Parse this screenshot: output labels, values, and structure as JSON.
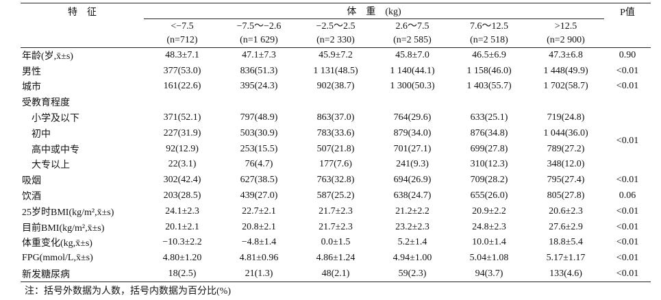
{
  "table": {
    "header": {
      "feature": "特　征",
      "weight": "体　重　(kg)",
      "columns": [
        {
          "range": "<−7.5",
          "n": "(n=712)"
        },
        {
          "range": "−7.5～−2.6",
          "n": "(n=1 629)"
        },
        {
          "range": "−2.5～2.5",
          "n": "(n=2 330)"
        },
        {
          "range": "2.6～7.5",
          "n": "(n=2 585)"
        },
        {
          "range": "7.6～12.5",
          "n": "(n=2 518)"
        },
        {
          "range": ">12.5",
          "n": "(n=2 900)"
        }
      ],
      "p": "P值"
    },
    "rows": [
      {
        "label": "年龄(岁,x̄±s)",
        "cells": [
          "48.3±7.1",
          "47.1±7.3",
          "45.9±7.2",
          "45.8±7.0",
          "46.5±6.9",
          "47.3±6.8"
        ],
        "p": "0.90"
      },
      {
        "label": "男性",
        "cells": [
          "377(53.0)",
          "836(51.3)",
          "1 131(48.5)",
          "1 140(44.1)",
          "1 158(46.0)",
          "1 448(49.9)"
        ],
        "p": "<0.01"
      },
      {
        "label": "城市",
        "cells": [
          "161(22.6)",
          "395(24.3)",
          "902(38.7)",
          "1 300(50.3)",
          "1 403(55.7)",
          "1 702(58.7)"
        ],
        "p": "<0.01"
      },
      {
        "label": "受教育程度",
        "p": "<0.01",
        "subrows": [
          {
            "label": "小学及以下",
            "cells": [
              "371(52.1)",
              "797(48.9)",
              "863(37.0)",
              "764(29.6)",
              "633(25.1)",
              "719(24.8)"
            ]
          },
          {
            "label": "初中",
            "cells": [
              "227(31.9)",
              "503(30.9)",
              "783(33.6)",
              "879(34.0)",
              "876(34.8)",
              "1 044(36.0)"
            ]
          },
          {
            "label": "高中或中专",
            "cells": [
              "92(12.9)",
              "253(15.5)",
              "507(21.8)",
              "701(27.1)",
              "699(27.8)",
              "789(27.2)"
            ]
          },
          {
            "label": "大专以上",
            "cells": [
              "22(3.1)",
              "76(4.7)",
              "177(7.6)",
              "241(9.3)",
              "310(12.3)",
              "348(12.0)"
            ]
          }
        ]
      },
      {
        "label": "吸烟",
        "cells": [
          "302(42.4)",
          "627(38.5)",
          "763(32.8)",
          "694(26.9)",
          "709(28.2)",
          "795(27.4)"
        ],
        "p": "<0.01"
      },
      {
        "label": "饮酒",
        "cells": [
          "203(28.5)",
          "439(27.0)",
          "587(25.2)",
          "638(24.7)",
          "655(26.0)",
          "805(27.8)"
        ],
        "p": "0.06"
      },
      {
        "label": "25岁时BMI(kg/m²,x̄±s)",
        "cells": [
          "24.1±2.3",
          "22.7±2.1",
          "21.7±2.3",
          "21.2±2.2",
          "20.9±2.2",
          "20.6±2.3"
        ],
        "p": "<0.01"
      },
      {
        "label": "目前BMI(kg/m²,x̄±s)",
        "cells": [
          "20.1±2.1",
          "20.8±2.1",
          "21.7±2.3",
          "23.2±2.3",
          "24.8±2.3",
          "27.6±2.9"
        ],
        "p": "<0.01"
      },
      {
        "label": "体重变化(kg,x̄±s)",
        "cells": [
          "−10.3±2.2",
          "−4.8±1.4",
          "0.0±1.5",
          "5.2±1.4",
          "10.0±1.4",
          "18.8±5.4"
        ],
        "p": "<0.01"
      },
      {
        "label": "FPG(mmol/L,x̄±s)",
        "cells": [
          "4.80±1.20",
          "4.81±0.96",
          "4.86±1.24",
          "4.94±1.00",
          "5.04±1.08",
          "5.17±1.17"
        ],
        "p": "<0.01"
      },
      {
        "label": "新发糖尿病",
        "cells": [
          "18(2.5)",
          "21(1.3)",
          "48(2.1)",
          "59(2.3)",
          "94(3.7)",
          "133(4.6)"
        ],
        "p": "<0.01"
      }
    ],
    "note": "注：括号外数据为人数，括号内数据为百分比(%)"
  }
}
